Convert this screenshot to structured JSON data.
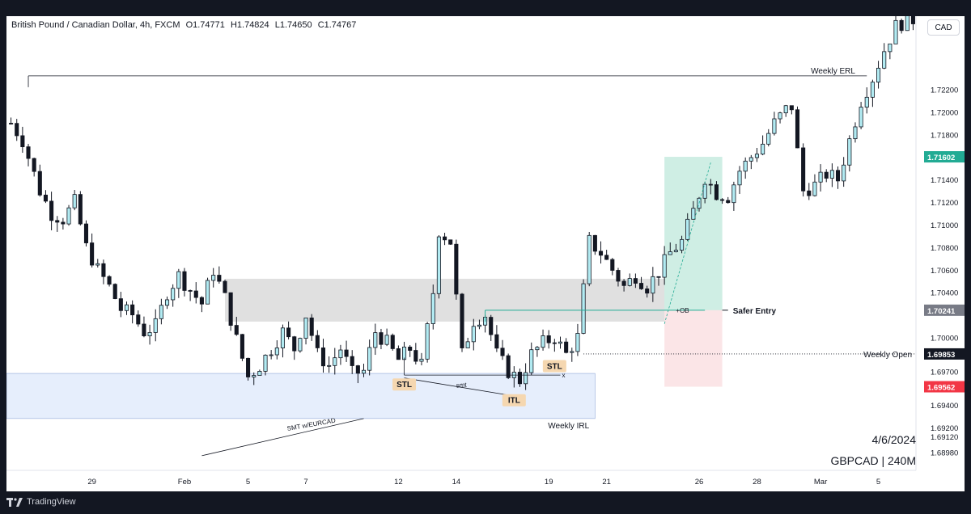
{
  "header": {
    "symbol_name": "British Pound / Canadian Dollar, 4h, FXCM",
    "open": "O1.74771",
    "high": "H1.74824",
    "low": "L1.74650",
    "close": "C1.74767"
  },
  "currency_button": "CAD",
  "footer": {
    "brand": "TradingView"
  },
  "stamp": {
    "date": "4/6/2024",
    "pair_tf": "GBPCAD | 240M"
  },
  "colors": {
    "up": "#b2ebf2",
    "down": "#131722",
    "background": "#ffffff",
    "tp_zone": "#cfeee4",
    "sl_zone": "#fbe5e7",
    "fvg_zone": "#e0e0e0",
    "range_zone": "#e6eefc",
    "green_price": "#22ab94",
    "red_price": "#f23645"
  },
  "chart_data": {
    "type": "candlestick",
    "ylim": [
      1.6882,
      1.7285
    ],
    "y_ticks": [
      "1.72200",
      "1.72000",
      "1.71800",
      "1.71400",
      "1.71200",
      "1.71000",
      "1.70800",
      "1.70600",
      "1.70400",
      "1.70000",
      "1.69700",
      "1.69400",
      "1.69200",
      "1.69120",
      "1.68980"
    ],
    "x_ticks": [
      {
        "label": "29",
        "i": 14
      },
      {
        "label": "Feb",
        "i": 30
      },
      {
        "label": "5",
        "i": 41
      },
      {
        "label": "7",
        "i": 51
      },
      {
        "label": "12",
        "i": 67
      },
      {
        "label": "14",
        "i": 77
      },
      {
        "label": "19",
        "i": 93
      },
      {
        "label": "21",
        "i": 103
      },
      {
        "label": "26",
        "i": 119
      },
      {
        "label": "28",
        "i": 129
      },
      {
        "label": "Mar",
        "i": 140
      },
      {
        "label": "5",
        "i": 150
      }
    ],
    "price_labels": [
      {
        "value": "1.71602",
        "price": 1.71602,
        "color": "#22ab94"
      },
      {
        "value": "1.70241",
        "price": 1.70241,
        "color": "#787b86"
      },
      {
        "value": "1.69853",
        "price": 1.69853,
        "color": "#131722"
      },
      {
        "value": "1.69562",
        "price": 1.69562,
        "color": "#f23645"
      }
    ],
    "annotations": {
      "weekly_erl": "Weekly ERL",
      "weekly_irl": "Weekly IRL",
      "weekly_open": "Weekly Open",
      "safer_entry": "Safer Entry",
      "ob": "+OB",
      "stl_left": "STL",
      "stl_right": "STL",
      "itl": "ITL",
      "smt": "smt",
      "smt_eurcad": "SMT w/EURCAD",
      "x_mark": "x"
    },
    "close_anchors": [
      [
        0,
        1.719
      ],
      [
        2,
        1.7175
      ],
      [
        5,
        1.713
      ],
      [
        7,
        1.711
      ],
      [
        9,
        1.7105
      ],
      [
        11,
        1.712
      ],
      [
        13,
        1.708
      ],
      [
        15,
        1.706
      ],
      [
        17,
        1.7045
      ],
      [
        19,
        1.7025
      ],
      [
        21,
        1.702
      ],
      [
        23,
        1.7005
      ],
      [
        25,
        1.701
      ],
      [
        27,
        1.704
      ],
      [
        29,
        1.7055
      ],
      [
        31,
        1.7042
      ],
      [
        33,
        1.703
      ],
      [
        35,
        1.706
      ],
      [
        37,
        1.7035
      ],
      [
        39,
        1.6998
      ],
      [
        41,
        1.6965
      ],
      [
        43,
        1.6975
      ],
      [
        45,
        1.699
      ],
      [
        47,
        1.7005
      ],
      [
        49,
        1.699
      ],
      [
        51,
        1.702
      ],
      [
        53,
        1.6985
      ],
      [
        55,
        1.6975
      ],
      [
        57,
        1.699
      ],
      [
        59,
        1.6968
      ],
      [
        61,
        1.697
      ],
      [
        63,
        1.7005
      ],
      [
        65,
        1.6995
      ],
      [
        67,
        1.698
      ],
      [
        69,
        1.699
      ],
      [
        71,
        1.6975
      ],
      [
        73,
        1.704
      ],
      [
        74,
        1.7095
      ],
      [
        76,
        1.7085
      ],
      [
        78,
        1.6985
      ],
      [
        80,
        1.7015
      ],
      [
        82,
        1.702
      ],
      [
        84,
        1.6985
      ],
      [
        86,
        1.697
      ],
      [
        88,
        1.6962
      ],
      [
        90,
        1.6985
      ],
      [
        92,
        1.6995
      ],
      [
        94,
        1.7
      ],
      [
        96,
        1.6985
      ],
      [
        98,
        1.7
      ],
      [
        100,
        1.7085
      ],
      [
        102,
        1.7075
      ],
      [
        104,
        1.706
      ],
      [
        106,
        1.7045
      ],
      [
        108,
        1.7055
      ],
      [
        110,
        1.7045
      ],
      [
        112,
        1.7058
      ],
      [
        114,
        1.7075
      ],
      [
        116,
        1.7085
      ],
      [
        118,
        1.7112
      ],
      [
        120,
        1.7142
      ],
      [
        122,
        1.7128
      ],
      [
        124,
        1.7125
      ],
      [
        126,
        1.7148
      ],
      [
        128,
        1.716
      ],
      [
        130,
        1.7172
      ],
      [
        132,
        1.719
      ],
      [
        134,
        1.7202
      ],
      [
        135,
        1.7205
      ],
      [
        136,
        1.7165
      ],
      [
        137,
        1.713
      ],
      [
        139,
        1.7135
      ],
      [
        141,
        1.7145
      ],
      [
        143,
        1.714
      ],
      [
        145,
        1.7175
      ],
      [
        147,
        1.721
      ],
      [
        149,
        1.723
      ],
      [
        151,
        1.7255
      ],
      [
        153,
        1.7276
      ],
      [
        155,
        1.7282
      ]
    ]
  }
}
